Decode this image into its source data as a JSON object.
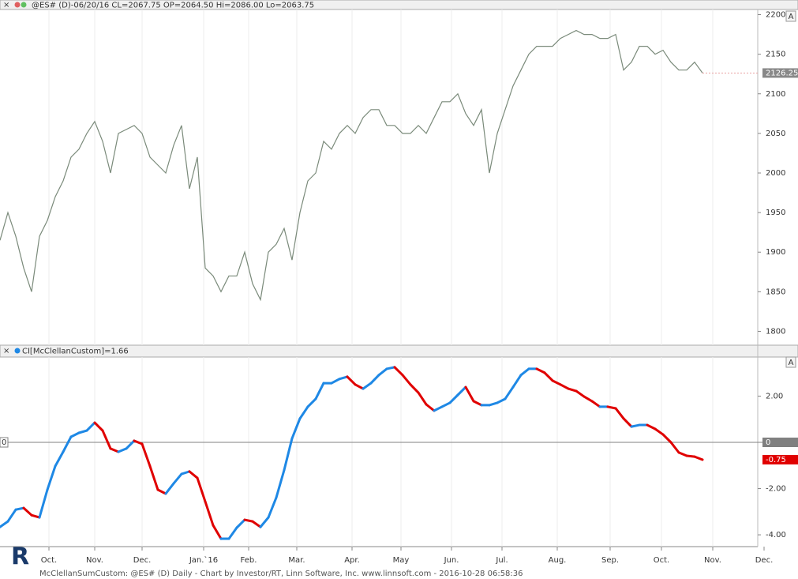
{
  "chart_data": [
    {
      "type": "line",
      "title": "@ES# (D)-06/20/16 CL=2067.75 OP=2064.50 Hi=2086.00 Lo=2063.75",
      "scale_button": "A",
      "color": "#7a8a7a",
      "last_color": "#e8a0a0",
      "values": [
        1915,
        1950,
        1920,
        1880,
        1850,
        1920,
        1940,
        1970,
        1990,
        2020,
        2030,
        2050,
        2065,
        2040,
        2000,
        2050,
        2055,
        2060,
        2050,
        2020,
        2010,
        2000,
        2035,
        2060,
        1980,
        2020,
        1880,
        1870,
        1850,
        1870,
        1870,
        1900,
        1860,
        1840,
        1900,
        1910,
        1930,
        1890,
        1950,
        1990,
        2000,
        2040,
        2030,
        2050,
        2060,
        2050,
        2070,
        2080,
        2080,
        2060,
        2060,
        2050,
        2050,
        2060,
        2050,
        2070,
        2090,
        2090,
        2100,
        2075,
        2060,
        2080,
        2000,
        2050,
        2080,
        2110,
        2130,
        2150,
        2160,
        2160,
        2160,
        2170,
        2175,
        2180,
        2175,
        2175,
        2170,
        2170,
        2175,
        2130,
        2140,
        2160,
        2160,
        2150,
        2155,
        2140,
        2130,
        2130,
        2140,
        2126.25
      ],
      "xlim": [
        0,
        96
      ],
      "ylim": [
        1782.5,
        2206.5
      ],
      "yticks": [
        1800,
        1850,
        1900,
        1950,
        2000,
        2050,
        2100,
        2150,
        2200
      ]
    },
    {
      "type": "updown",
      "title": "CI[McClellanCustom]=1.66",
      "scale_button": "A",
      "up_color": "#1e88e5",
      "down_color": "#e00000",
      "zero_color": "#808080",
      "values": [
        -3.66,
        -3.42,
        -2.91,
        -2.84,
        -3.15,
        -3.25,
        -2.05,
        -1.03,
        -0.41,
        0.24,
        0.41,
        0.51,
        0.85,
        0.51,
        -0.27,
        -0.41,
        -0.27,
        0.07,
        -0.07,
        -1.03,
        -2.05,
        -2.22,
        -1.78,
        -1.37,
        -1.26,
        -1.54,
        -2.56,
        -3.59,
        -4.17,
        -4.17,
        -3.69,
        -3.35,
        -3.42,
        -3.66,
        -3.25,
        -2.39,
        -1.2,
        0.17,
        1.03,
        1.54,
        1.88,
        2.56,
        2.56,
        2.74,
        2.84,
        2.5,
        2.32,
        2.56,
        2.91,
        3.18,
        3.25,
        2.91,
        2.5,
        2.15,
        1.64,
        1.37,
        1.54,
        1.71,
        2.05,
        2.39,
        1.78,
        1.61,
        1.61,
        1.71,
        1.88,
        2.39,
        2.91,
        3.18,
        3.18,
        3.01,
        2.67,
        2.5,
        2.32,
        2.22,
        1.98,
        1.78,
        1.54,
        1.54,
        1.47,
        1.03,
        0.68,
        0.75,
        0.75,
        0.58,
        0.34,
        0,
        -0.44,
        -0.58,
        -0.62,
        -0.75
      ],
      "xlim": [
        0,
        96
      ],
      "ylim": [
        -4.51,
        3.69
      ],
      "yticks": [
        {
          "value": 2,
          "label": "2.00"
        },
        0,
        {
          "value": -2,
          "label": "-2.00"
        },
        {
          "value": -4,
          "label": "-4.00"
        }
      ],
      "xticks": [
        {
          "value": 6.2,
          "label": "Oct."
        },
        {
          "value": 12,
          "label": "Nov."
        },
        {
          "value": 18,
          "label": "Dec."
        },
        {
          "value": 25.8,
          "label": "Jan.`16"
        },
        {
          "value": 31.5,
          "label": "Feb."
        },
        {
          "value": 37.6,
          "label": "Mar."
        },
        {
          "value": 44.6,
          "label": "Apr."
        },
        {
          "value": 50.8,
          "label": "May"
        },
        {
          "value": 57.2,
          "label": "Jun."
        },
        {
          "value": 63.6,
          "label": "Jul."
        },
        {
          "value": 70.6,
          "label": "Aug."
        },
        {
          "value": 77.3,
          "label": "Sep."
        },
        {
          "value": 83.8,
          "label": "Oct."
        },
        {
          "value": 90.3,
          "label": "Nov."
        },
        {
          "value": 96.8,
          "label": "Dec."
        }
      ]
    }
  ],
  "footer": "McClellanSumCustom: @ES# (D) Daily - Chart by Investor/RT, Linn Software, Inc. www.linnsoft.com - 2016-10-28 06:58:36",
  "logo": "R"
}
